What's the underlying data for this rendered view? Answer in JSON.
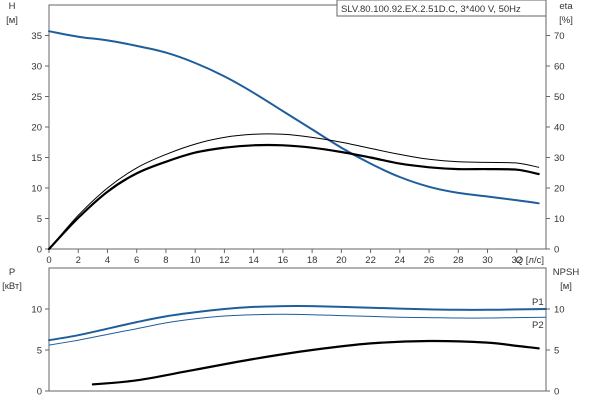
{
  "title": "SLV.80.100.92.EX.2.51D.C, 3*400 V, 50Hz",
  "colors": {
    "pump": "#1f5e9c",
    "black": "#000000",
    "axis": "#666666"
  },
  "chart_data": [
    {
      "type": "line",
      "panel": "top",
      "x_unit_label": "Q [л/с]",
      "xlim": [
        0,
        34
      ],
      "xticks": [
        0,
        2,
        4,
        6,
        8,
        10,
        12,
        14,
        16,
        18,
        20,
        22,
        24,
        26,
        28,
        30,
        32
      ],
      "left_axis": {
        "label": "H",
        "unit": "[м]",
        "ylim": [
          0,
          40
        ],
        "ticks": [
          0,
          5,
          10,
          15,
          20,
          25,
          30,
          35
        ]
      },
      "right_axis": {
        "label": "eta",
        "unit": "[%]",
        "ylim": [
          0,
          80
        ],
        "ticks": [
          0,
          10,
          20,
          30,
          40,
          50,
          60,
          70
        ]
      },
      "series": [
        {
          "axis": "left",
          "color": "#1f5e9c",
          "width": 2,
          "x": [
            0,
            2,
            4,
            6,
            8,
            10,
            12,
            14,
            16,
            18,
            20,
            22,
            24,
            26,
            28,
            30,
            32,
            33.5
          ],
          "y": [
            35.7,
            34.8,
            34.2,
            33.3,
            32.2,
            30.5,
            28.3,
            25.6,
            22.6,
            19.6,
            16.6,
            14.0,
            11.8,
            10.2,
            9.2,
            8.6,
            8.0,
            7.5
          ]
        },
        {
          "axis": "right",
          "color": "#000000",
          "width": 2.2,
          "x": [
            0,
            2,
            4,
            6,
            8,
            10,
            12,
            14,
            16,
            18,
            20,
            22,
            24,
            26,
            28,
            30,
            32,
            33.5
          ],
          "y": [
            0,
            10.2,
            18.8,
            24.8,
            28.6,
            31.6,
            33.2,
            34.0,
            34.0,
            33.2,
            31.8,
            30.0,
            28.0,
            26.8,
            26.2,
            26.2,
            26.0,
            24.6
          ]
        },
        {
          "axis": "right",
          "color": "#000000",
          "width": 1,
          "x": [
            0,
            2,
            4,
            6,
            8,
            10,
            12,
            14,
            16,
            18,
            20,
            22,
            24,
            26,
            28,
            30,
            32,
            33.5
          ],
          "y": [
            0,
            11.0,
            20.0,
            26.6,
            31.0,
            34.4,
            36.6,
            37.6,
            37.6,
            36.6,
            35.0,
            33.0,
            31.0,
            29.4,
            28.6,
            28.4,
            28.2,
            26.8
          ]
        }
      ]
    },
    {
      "type": "line",
      "panel": "bottom",
      "xlim": [
        0,
        34
      ],
      "left_axis": {
        "label": "P",
        "unit": "[кВт]",
        "ylim": [
          0,
          15
        ],
        "ticks": [
          0,
          5,
          10
        ]
      },
      "right_axis": {
        "label": "NPSH",
        "unit": "[м]",
        "ylim": [
          0,
          15
        ],
        "ticks": [
          0,
          5,
          10
        ]
      },
      "series": [
        {
          "name": "P1",
          "axis": "left",
          "color": "#1f5e9c",
          "width": 2,
          "x": [
            0,
            2,
            4,
            6,
            8,
            10,
            12,
            14,
            16,
            18,
            20,
            22,
            24,
            26,
            28,
            30,
            32,
            34
          ],
          "y": [
            6.2,
            6.8,
            7.6,
            8.4,
            9.1,
            9.6,
            10.0,
            10.25,
            10.35,
            10.35,
            10.25,
            10.15,
            10.05,
            9.95,
            9.9,
            9.9,
            9.95,
            10.0
          ]
        },
        {
          "name": "P2",
          "axis": "left",
          "color": "#1f5e9c",
          "width": 1,
          "x": [
            0,
            2,
            4,
            6,
            8,
            10,
            12,
            14,
            16,
            18,
            20,
            22,
            24,
            26,
            28,
            30,
            32,
            34
          ],
          "y": [
            5.6,
            6.2,
            6.9,
            7.6,
            8.3,
            8.8,
            9.15,
            9.3,
            9.35,
            9.3,
            9.2,
            9.1,
            9.0,
            8.95,
            8.9,
            8.9,
            8.95,
            9.0
          ]
        },
        {
          "axis": "right",
          "color": "#000000",
          "width": 2.2,
          "x": [
            3,
            6,
            10,
            14,
            18,
            22,
            26,
            30,
            32,
            33.5
          ],
          "y": [
            0.8,
            1.3,
            2.6,
            3.9,
            5.0,
            5.8,
            6.1,
            5.9,
            5.5,
            5.2
          ]
        }
      ]
    }
  ]
}
